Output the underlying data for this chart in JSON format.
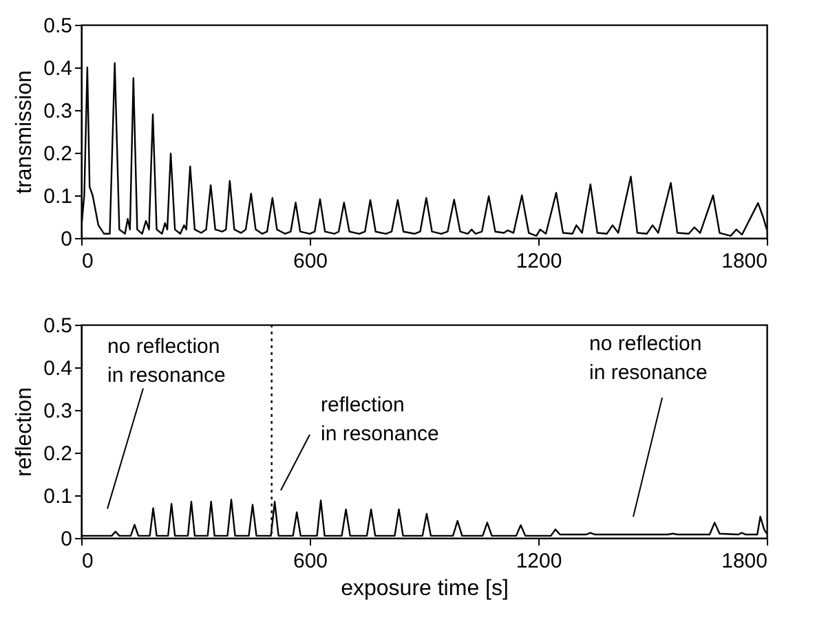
{
  "chart_data": [
    {
      "type": "line",
      "ylabel": "transmission",
      "xlim": [
        0,
        1800
      ],
      "xticks": [
        0,
        600,
        1200,
        1800
      ],
      "ylim": [
        0,
        0.5
      ],
      "yticks": [
        0,
        0.1,
        0.2,
        0.3,
        0.4,
        0.5
      ],
      "x": [
        0,
        8,
        16,
        22,
        30,
        45,
        60,
        75,
        88,
        100,
        115,
        122,
        128,
        137,
        147,
        160,
        170,
        178,
        188,
        198,
        212,
        220,
        226,
        235,
        246,
        260,
        270,
        276,
        286,
        298,
        315,
        328,
        340,
        352,
        370,
        380,
        390,
        402,
        420,
        432,
        446,
        458,
        475,
        488,
        502,
        514,
        535,
        550,
        563,
        575,
        600,
        613,
        627,
        640,
        665,
        676,
        690,
        704,
        730,
        745,
        759,
        773,
        800,
        815,
        831,
        846,
        875,
        890,
        906,
        921,
        945,
        962,
        979,
        995,
        1015,
        1025,
        1035,
        1052,
        1070,
        1087,
        1110,
        1120,
        1135,
        1157,
        1175,
        1195,
        1205,
        1220,
        1247,
        1265,
        1290,
        1300,
        1315,
        1337,
        1355,
        1380,
        1395,
        1410,
        1443,
        1460,
        1485,
        1500,
        1515,
        1548,
        1565,
        1595,
        1610,
        1625,
        1659,
        1676,
        1705,
        1720,
        1735,
        1777,
        1790,
        1800
      ],
      "series": [
        {
          "color": "#000000",
          "values": [
            0.02,
            0.1,
            0.4,
            0.12,
            0.1,
            0.03,
            0.01,
            0.01,
            0.41,
            0.02,
            0.01,
            0.045,
            0.02,
            0.375,
            0.02,
            0.01,
            0.04,
            0.02,
            0.29,
            0.02,
            0.01,
            0.035,
            0.02,
            0.198,
            0.02,
            0.01,
            0.03,
            0.02,
            0.168,
            0.02,
            0.012,
            0.02,
            0.124,
            0.02,
            0.015,
            0.02,
            0.134,
            0.02,
            0.012,
            0.02,
            0.104,
            0.02,
            0.01,
            0.015,
            0.094,
            0.02,
            0.01,
            0.015,
            0.083,
            0.015,
            0.01,
            0.015,
            0.091,
            0.015,
            0.01,
            0.015,
            0.083,
            0.015,
            0.01,
            0.015,
            0.089,
            0.015,
            0.01,
            0.015,
            0.089,
            0.015,
            0.01,
            0.015,
            0.094,
            0.015,
            0.01,
            0.015,
            0.09,
            0.015,
            0.01,
            0.02,
            0.01,
            0.015,
            0.098,
            0.015,
            0.012,
            0.018,
            0.012,
            0.1,
            0.012,
            0.005,
            0.02,
            0.01,
            0.106,
            0.012,
            0.01,
            0.03,
            0.012,
            0.126,
            0.012,
            0.01,
            0.03,
            0.012,
            0.144,
            0.012,
            0.01,
            0.03,
            0.012,
            0.129,
            0.012,
            0.01,
            0.025,
            0.012,
            0.1,
            0.012,
            0.005,
            0.02,
            0.008,
            0.082,
            0.05,
            0.02
          ]
        }
      ]
    },
    {
      "type": "line",
      "xlabel": "exposure time [s]",
      "ylabel": "reflection",
      "xlim": [
        0,
        1800
      ],
      "xticks": [
        0,
        600,
        1200,
        1800
      ],
      "ylim": [
        0,
        0.5
      ],
      "yticks": [
        0,
        0.1,
        0.2,
        0.3,
        0.4,
        0.5
      ],
      "x": [
        0,
        80,
        90,
        100,
        130,
        140,
        150,
        180,
        189,
        198,
        228,
        237,
        246,
        280,
        289,
        298,
        332,
        341,
        350,
        384,
        394,
        404,
        440,
        450,
        460,
        498,
        508,
        518,
        556,
        566,
        576,
        619,
        629,
        639,
        684,
        695,
        706,
        750,
        761,
        772,
        823,
        834,
        845,
        896,
        907,
        918,
        976,
        988,
        1000,
        1054,
        1066,
        1078,
        1142,
        1154,
        1166,
        1233,
        1245,
        1257,
        1325,
        1337,
        1349,
        1540,
        1553,
        1566,
        1650,
        1663,
        1676,
        1725,
        1734,
        1745,
        1775,
        1783,
        1793,
        1800
      ],
      "series": [
        {
          "color": "#000000",
          "values": [
            0.005,
            0.005,
            0.015,
            0.005,
            0.005,
            0.031,
            0.005,
            0.005,
            0.07,
            0.005,
            0.005,
            0.08,
            0.005,
            0.005,
            0.085,
            0.005,
            0.005,
            0.085,
            0.005,
            0.005,
            0.09,
            0.005,
            0.005,
            0.078,
            0.005,
            0.005,
            0.085,
            0.005,
            0.005,
            0.06,
            0.005,
            0.005,
            0.088,
            0.005,
            0.005,
            0.067,
            0.005,
            0.005,
            0.067,
            0.005,
            0.005,
            0.067,
            0.005,
            0.005,
            0.057,
            0.005,
            0.005,
            0.04,
            0.005,
            0.005,
            0.036,
            0.005,
            0.005,
            0.03,
            0.005,
            0.005,
            0.02,
            0.008,
            0.008,
            0.012,
            0.008,
            0.008,
            0.01,
            0.008,
            0.008,
            0.036,
            0.01,
            0.008,
            0.012,
            0.008,
            0.008,
            0.05,
            0.02,
            0.01
          ]
        }
      ],
      "ref_lines": [
        {
          "axis": "x",
          "value": 500,
          "line_style": "dotted",
          "color": "#000000"
        }
      ],
      "annotations": [
        "no reflection\nin resonance",
        "reflection\nin resonance",
        "no reflection\nin resonance"
      ]
    }
  ]
}
